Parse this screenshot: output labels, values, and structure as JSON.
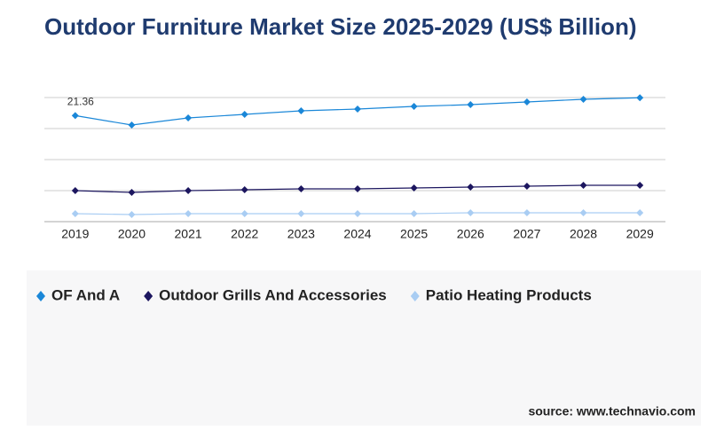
{
  "chart_data": {
    "type": "line",
    "title": "Outdoor Furniture Market Size 2025-2029 (US$ Billion)",
    "categories": [
      "2019",
      "2020",
      "2021",
      "2022",
      "2023",
      "2024",
      "2025",
      "2026",
      "2027",
      "2028",
      "2029"
    ],
    "series": [
      {
        "name": "OF And A",
        "color": "#1a87d8",
        "values": [
          21.36,
          19.46,
          20.89,
          21.61,
          22.32,
          22.68,
          23.21,
          23.57,
          24.11,
          24.64,
          24.95
        ],
        "value_labels": [
          "21.36",
          null,
          null,
          null,
          null,
          null,
          null,
          null,
          null,
          null,
          null
        ]
      },
      {
        "name": "Outdoor Grills And Accessories",
        "color": "#1c165f",
        "values": [
          6.25,
          5.89,
          6.25,
          6.43,
          6.61,
          6.61,
          6.79,
          6.96,
          7.14,
          7.32,
          7.32
        ]
      },
      {
        "name": "Patio Heating Products",
        "color": "#a9cdf3",
        "values": [
          1.61,
          1.43,
          1.61,
          1.61,
          1.61,
          1.61,
          1.61,
          1.79,
          1.79,
          1.79,
          1.79
        ]
      }
    ],
    "ylim": [
      0,
      25
    ],
    "yticks": [
      0,
      6.25,
      12.5,
      18.75,
      25
    ],
    "grid": true,
    "source": "source: www.technavio.com"
  }
}
